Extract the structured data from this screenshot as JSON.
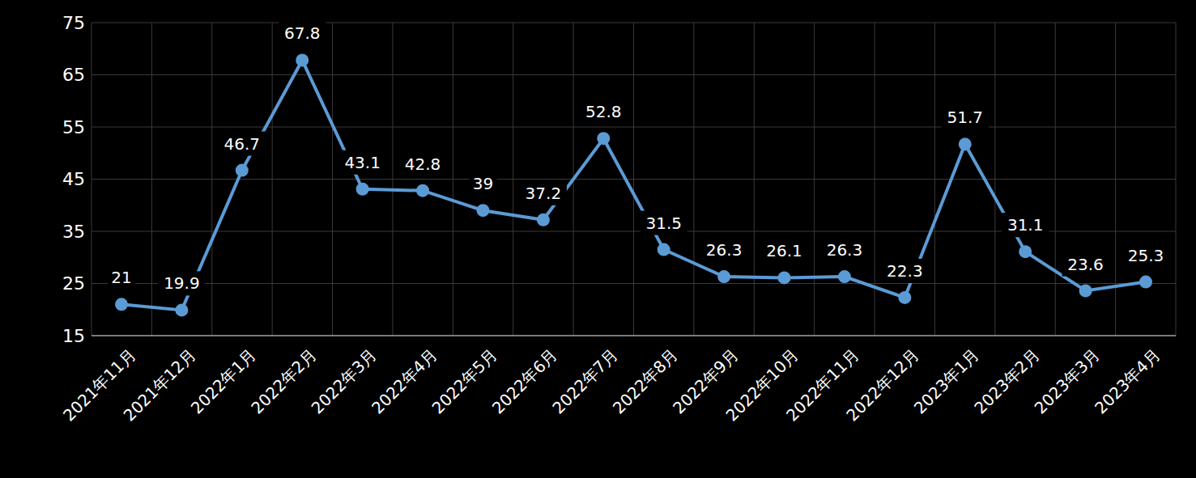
{
  "chart_data": {
    "type": "line",
    "categories": [
      "2021年11月",
      "2021年12月",
      "2022年1月",
      "2022年2月",
      "2022年3月",
      "2022年4月",
      "2022年5月",
      "2022年6月",
      "2022年7月",
      "2022年8月",
      "2022年9月",
      "2022年10月",
      "2022年11月",
      "2022年12月",
      "2023年1月",
      "2023年2月",
      "2023年3月",
      "2023年4月"
    ],
    "values": [
      21,
      19.9,
      46.7,
      67.8,
      43.1,
      42.8,
      39,
      37.2,
      52.8,
      31.5,
      26.3,
      26.1,
      26.3,
      22.3,
      51.7,
      31.1,
      23.6,
      25.3
    ],
    "color": "#5b9bd5",
    "ylim": [
      15,
      75
    ],
    "yticks": [
      15,
      25,
      35,
      45,
      55,
      65,
      75
    ],
    "grid": true,
    "data_labels": true,
    "marker": "circle"
  }
}
